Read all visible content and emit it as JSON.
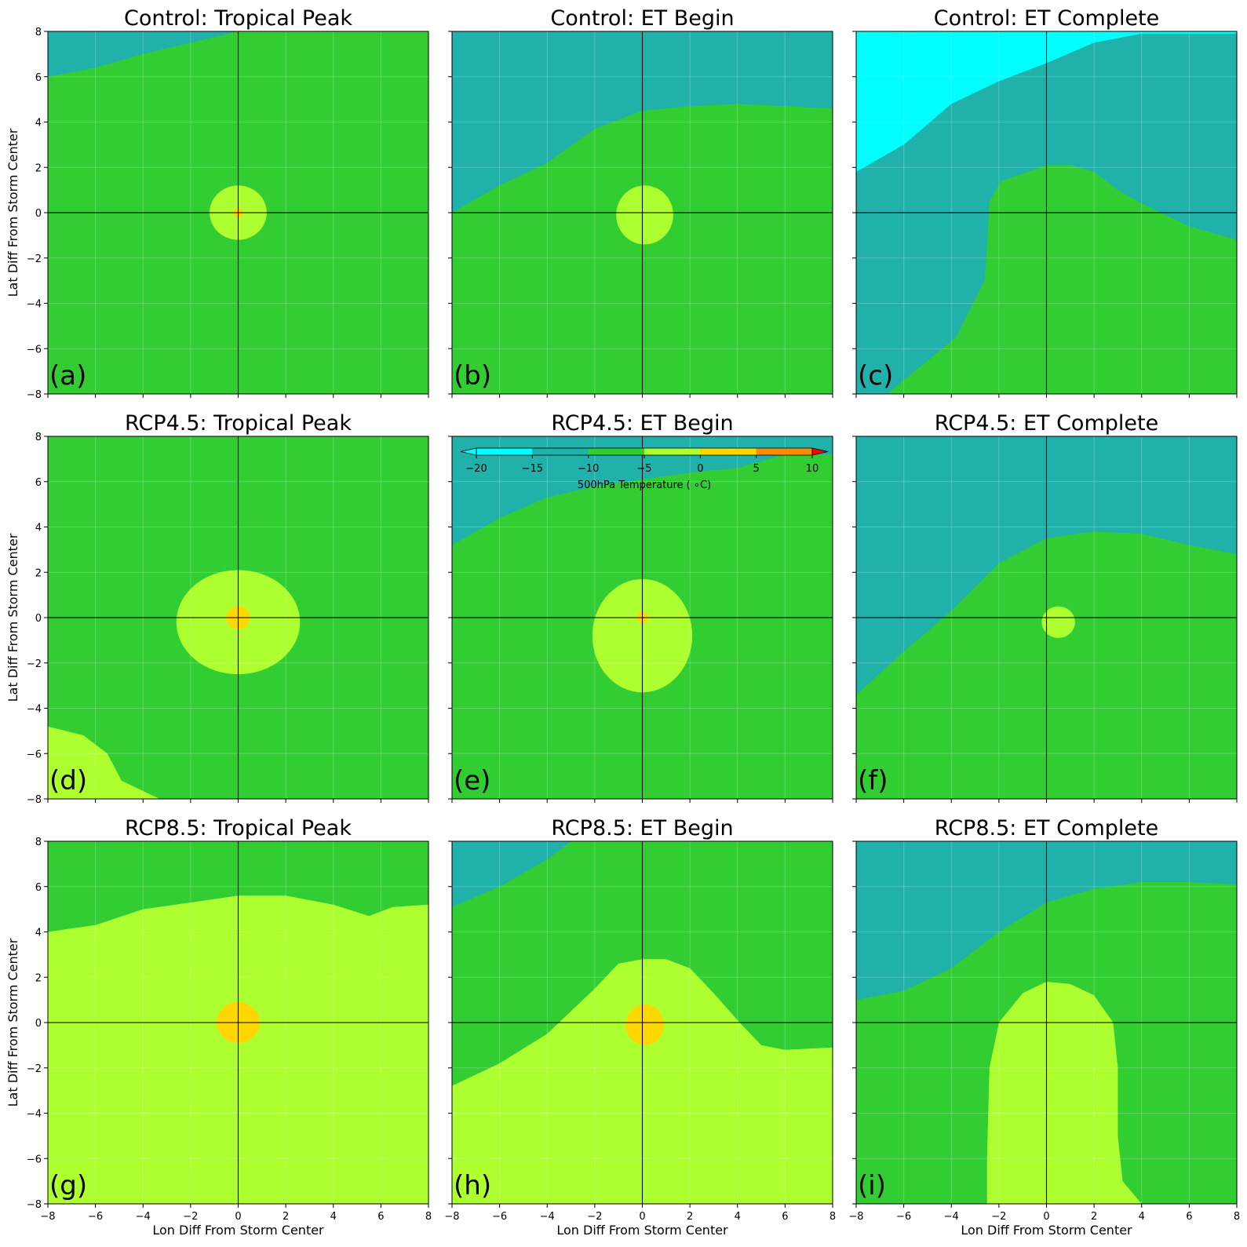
{
  "figure": {
    "xlabel": "Lon Diff From Storm Center",
    "ylabel": "Lat Diff From Storm Center"
  },
  "colorbar": {
    "label": "500hPa Temperature ($^\\circ$C)",
    "label_display": "500hPa Temperature ( ∘C)",
    "levels": [
      -20,
      -15,
      -10,
      -5,
      0,
      5,
      10
    ],
    "tick_labels": [
      "−20",
      "−15",
      "−10",
      "−5",
      "0",
      "5",
      "10"
    ],
    "colors": [
      "#00ffff",
      "#20b2aa",
      "#32cd32",
      "#adff2f",
      "#ffd700",
      "#ff8c00"
    ],
    "extend_min_color": "#00ffff",
    "extend_max_color": "#ff0000",
    "orientation": "horizontal"
  },
  "chart_data": [
    {
      "type": "contourf",
      "panel": "(a)",
      "title": "Control: Tropical Peak",
      "xlim": [
        -8,
        8
      ],
      "ylim": [
        -8,
        8
      ],
      "grid": true,
      "xticks": [
        -8,
        -6,
        -4,
        -2,
        0,
        2,
        4,
        6,
        8
      ],
      "yticks": [
        -8,
        -6,
        -4,
        -2,
        0,
        2,
        4,
        6,
        8
      ],
      "regions": [
        {
          "range": [
            -15,
            -10
          ],
          "color": "#20b2aa",
          "boundary": [
            [
              -8,
              6.0
            ],
            [
              -6,
              6.4
            ],
            [
              -4,
              7.0
            ],
            [
              -2,
              7.5
            ],
            [
              0,
              8.0
            ]
          ]
        },
        {
          "range": [
            -10,
            -5
          ],
          "color": "#32cd32",
          "note": "background"
        },
        {
          "range": [
            -5,
            0
          ],
          "color": "#adff2f",
          "shape": "blob",
          "center": [
            0.0,
            0.0
          ],
          "rx": 1.2,
          "ry": 1.2
        },
        {
          "range": [
            0,
            5
          ],
          "color": "#ffd700",
          "shape": "blob",
          "center": [
            0.0,
            0.0
          ],
          "rx": 0.2,
          "ry": 0.2
        }
      ]
    },
    {
      "type": "contourf",
      "panel": "(b)",
      "title": "Control: ET Begin",
      "xlim": [
        -8,
        8
      ],
      "ylim": [
        -8,
        8
      ],
      "grid": true,
      "regions": [
        {
          "range": [
            -15,
            -10
          ],
          "color": "#20b2aa",
          "boundary": [
            [
              -8,
              0.0
            ],
            [
              -6,
              1.2
            ],
            [
              -4,
              2.2
            ],
            [
              -2,
              3.7
            ],
            [
              0,
              4.5
            ],
            [
              2,
              4.7
            ],
            [
              4,
              4.8
            ],
            [
              6,
              4.7
            ],
            [
              8,
              4.6
            ]
          ]
        },
        {
          "range": [
            -10,
            -5
          ],
          "color": "#32cd32",
          "note": "background"
        },
        {
          "range": [
            -5,
            0
          ],
          "color": "#adff2f",
          "shape": "blob",
          "center": [
            0.1,
            -0.1
          ],
          "rx": 1.2,
          "ry": 1.3
        }
      ]
    },
    {
      "type": "contourf",
      "panel": "(c)",
      "title": "Control: ET Complete",
      "xlim": [
        -8,
        8
      ],
      "ylim": [
        -8,
        8
      ],
      "grid": true,
      "regions": [
        {
          "range": [
            -20,
            -15
          ],
          "color": "#00ffff",
          "boundary": [
            [
              -8,
              1.8
            ],
            [
              -6,
              3.0
            ],
            [
              -4,
              4.8
            ],
            [
              -2,
              5.8
            ],
            [
              0,
              6.6
            ],
            [
              2,
              7.5
            ],
            [
              4,
              7.9
            ],
            [
              6,
              7.9
            ],
            [
              8,
              7.9
            ]
          ]
        },
        {
          "range": [
            -15,
            -10
          ],
          "color": "#20b2aa",
          "note": "between cyan and green"
        },
        {
          "range": [
            -10,
            -5
          ],
          "color": "#32cd32",
          "boundary": [
            [
              -6.7,
              -8
            ],
            [
              -3.8,
              -5.5
            ],
            [
              -2.6,
              -3.0
            ],
            [
              -2.5,
              -1.5
            ],
            [
              -2.4,
              0.5
            ],
            [
              -1.9,
              1.4
            ],
            [
              -0.5,
              1.9
            ],
            [
              0,
              2.1
            ],
            [
              1,
              2.1
            ],
            [
              2,
              1.8
            ],
            [
              3,
              1.0
            ],
            [
              4,
              0.4
            ],
            [
              6,
              -0.6
            ],
            [
              8,
              -1.2
            ]
          ]
        }
      ]
    },
    {
      "type": "contourf",
      "panel": "(d)",
      "title": "RCP4.5: Tropical Peak",
      "xlim": [
        -8,
        8
      ],
      "ylim": [
        -8,
        8
      ],
      "grid": true,
      "regions": [
        {
          "range": [
            -10,
            -5
          ],
          "color": "#32cd32",
          "note": "background"
        },
        {
          "range": [
            -5,
            0
          ],
          "color": "#adff2f",
          "shape": "blob",
          "center": [
            0.0,
            -0.2
          ],
          "rx": 2.6,
          "ry": 2.3
        },
        {
          "range": [
            -5,
            0
          ],
          "color": "#adff2f",
          "boundary": [
            [
              -8,
              -4.8
            ],
            [
              -6.5,
              -5.2
            ],
            [
              -5.5,
              -6.0
            ],
            [
              -4.9,
              -7.2
            ],
            [
              -3.3,
              -8
            ]
          ]
        },
        {
          "range": [
            0,
            5
          ],
          "color": "#ffd700",
          "shape": "blob",
          "center": [
            0.0,
            0.0
          ],
          "rx": 0.5,
          "ry": 0.5
        }
      ]
    },
    {
      "type": "contourf",
      "panel": "(e)",
      "title": "RCP4.5: ET Begin",
      "xlim": [
        -8,
        8
      ],
      "ylim": [
        -8,
        8
      ],
      "grid": true,
      "regions": [
        {
          "range": [
            -15,
            -10
          ],
          "color": "#20b2aa",
          "boundary": [
            [
              -8,
              3.2
            ],
            [
              -6,
              4.4
            ],
            [
              -4,
              5.3
            ],
            [
              -2,
              5.8
            ],
            [
              0,
              6.1
            ],
            [
              2,
              6.4
            ],
            [
              4,
              6.6
            ],
            [
              6,
              7.2
            ],
            [
              8,
              7.2
            ]
          ]
        },
        {
          "range": [
            -10,
            -5
          ],
          "color": "#32cd32",
          "note": "background"
        },
        {
          "range": [
            -5,
            0
          ],
          "color": "#adff2f",
          "shape": "blob",
          "center": [
            0.0,
            -0.8
          ],
          "rx": 2.1,
          "ry": 2.5
        },
        {
          "range": [
            0,
            5
          ],
          "color": "#ffd700",
          "shape": "blob",
          "center": [
            0.0,
            0.0
          ],
          "rx": 0.25,
          "ry": 0.25
        }
      ]
    },
    {
      "type": "contourf",
      "panel": "(f)",
      "title": "RCP4.5: ET Complete",
      "xlim": [
        -8,
        8
      ],
      "ylim": [
        -8,
        8
      ],
      "grid": true,
      "regions": [
        {
          "range": [
            -20,
            -15
          ],
          "color": "#00ffff",
          "boundary": [
            [
              -8,
              4.1
            ],
            [
              -6,
              5.0
            ],
            [
              -4,
              6.0
            ],
            [
              -2,
              7.0
            ],
            [
              0,
              7.8
            ],
            [
              0.5,
              8.0
            ]
          ]
        },
        {
          "range": [
            -15,
            -10
          ],
          "color": "#20b2aa",
          "boundary": [
            [
              -8,
              -3.4
            ],
            [
              -6,
              -1.5
            ],
            [
              -4,
              0.3
            ],
            [
              -2,
              2.4
            ],
            [
              0,
              3.5
            ],
            [
              2,
              3.8
            ],
            [
              4,
              3.7
            ],
            [
              6,
              3.2
            ],
            [
              8,
              2.8
            ]
          ]
        },
        {
          "range": [
            -10,
            -5
          ],
          "color": "#32cd32",
          "note": "background"
        },
        {
          "range": [
            -5,
            0
          ],
          "color": "#adff2f",
          "shape": "blob",
          "center": [
            0.5,
            -0.2
          ],
          "rx": 0.7,
          "ry": 0.7
        }
      ]
    },
    {
      "type": "contourf",
      "panel": "(g)",
      "title": "RCP8.5: Tropical Peak",
      "xlim": [
        -8,
        8
      ],
      "ylim": [
        -8,
        8
      ],
      "grid": true,
      "regions": [
        {
          "range": [
            -10,
            -5
          ],
          "color": "#32cd32",
          "note": "background"
        },
        {
          "range": [
            -5,
            0
          ],
          "color": "#adff2f",
          "boundary": [
            [
              -8,
              4.0
            ],
            [
              -6,
              4.3
            ],
            [
              -4,
              5.0
            ],
            [
              -2,
              5.3
            ],
            [
              0,
              5.6
            ],
            [
              2,
              5.6
            ],
            [
              4,
              5.2
            ],
            [
              5.5,
              4.7
            ],
            [
              6.5,
              5.1
            ],
            [
              8,
              5.2
            ]
          ]
        },
        {
          "range": [
            0,
            5
          ],
          "color": "#ffd700",
          "shape": "blob",
          "center": [
            0.0,
            0.0
          ],
          "rx": 0.9,
          "ry": 0.9
        }
      ]
    },
    {
      "type": "contourf",
      "panel": "(h)",
      "title": "RCP8.5: ET Begin",
      "xlim": [
        -8,
        8
      ],
      "ylim": [
        -8,
        8
      ],
      "grid": true,
      "regions": [
        {
          "range": [
            -15,
            -10
          ],
          "color": "#20b2aa",
          "boundary": [
            [
              -8,
              5.1
            ],
            [
              -6,
              6.0
            ],
            [
              -4,
              7.2
            ],
            [
              -3,
              8.0
            ]
          ]
        },
        {
          "range": [
            -10,
            -5
          ],
          "color": "#32cd32",
          "note": "background"
        },
        {
          "range": [
            -5,
            0
          ],
          "color": "#adff2f",
          "boundary": [
            [
              -8,
              -2.8
            ],
            [
              -6,
              -1.8
            ],
            [
              -4,
              -0.5
            ],
            [
              -2,
              1.5
            ],
            [
              -1,
              2.6
            ],
            [
              0,
              2.8
            ],
            [
              1,
              2.8
            ],
            [
              2,
              2.4
            ],
            [
              3,
              1.3
            ],
            [
              4,
              0.1
            ],
            [
              5,
              -1.0
            ],
            [
              6,
              -1.2
            ],
            [
              8,
              -1.1
            ]
          ]
        },
        {
          "range": [
            0,
            5
          ],
          "color": "#ffd700",
          "shape": "blob",
          "center": [
            0.1,
            -0.1
          ],
          "rx": 0.8,
          "ry": 0.9
        }
      ]
    },
    {
      "type": "contourf",
      "panel": "(i)",
      "title": "RCP8.5: ET Complete",
      "xlim": [
        -8,
        8
      ],
      "ylim": [
        -8,
        8
      ],
      "grid": true,
      "regions": [
        {
          "range": [
            -20,
            -15
          ],
          "color": "#00ffff",
          "boundary": [
            [
              -8,
              6.1
            ],
            [
              -6,
              6.9
            ],
            [
              -4,
              7.5
            ],
            [
              -3,
              8.0
            ]
          ]
        },
        {
          "range": [
            -15,
            -10
          ],
          "color": "#20b2aa",
          "boundary": [
            [
              -8,
              1.0
            ],
            [
              -6,
              1.4
            ],
            [
              -4,
              2.4
            ],
            [
              -2,
              4.0
            ],
            [
              0,
              5.3
            ],
            [
              2,
              5.9
            ],
            [
              4,
              6.2
            ],
            [
              6,
              6.2
            ],
            [
              8,
              6.1
            ]
          ]
        },
        {
          "range": [
            -10,
            -5
          ],
          "color": "#32cd32",
          "note": "background"
        },
        {
          "range": [
            -5,
            0
          ],
          "color": "#adff2f",
          "boundary": [
            [
              -2.5,
              -8
            ],
            [
              -2.5,
              -6.0
            ],
            [
              -2.4,
              -2.0
            ],
            [
              -2.0,
              0.0
            ],
            [
              -1.0,
              1.3
            ],
            [
              0,
              1.8
            ],
            [
              1.0,
              1.7
            ],
            [
              2.0,
              1.2
            ],
            [
              2.8,
              0.0
            ],
            [
              3.0,
              -2.0
            ],
            [
              3.0,
              -5.0
            ],
            [
              3.2,
              -7.0
            ],
            [
              4.0,
              -8.0
            ]
          ]
        }
      ]
    }
  ]
}
